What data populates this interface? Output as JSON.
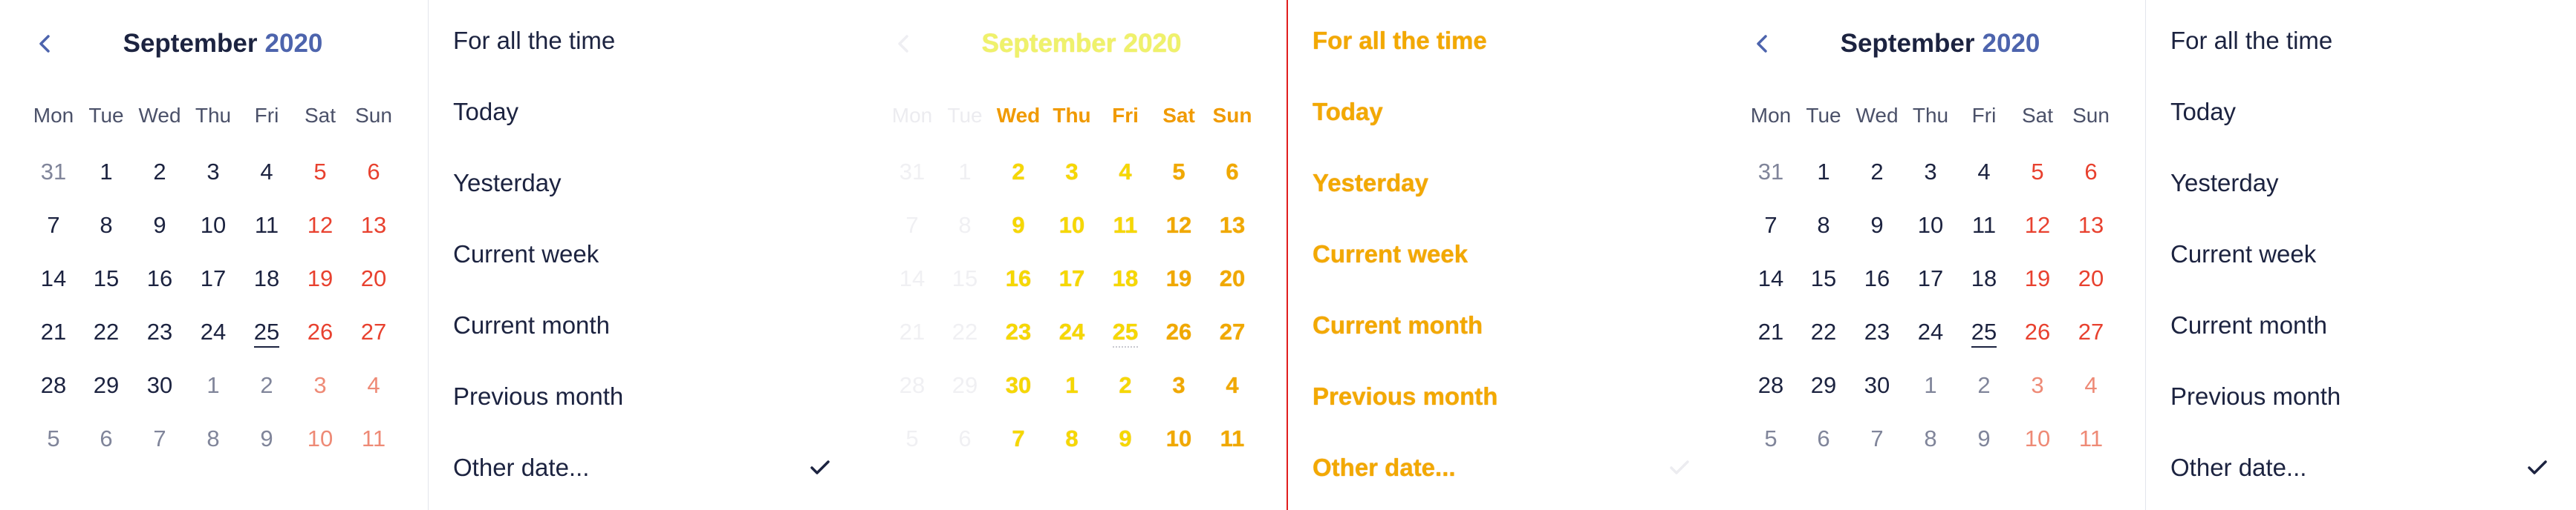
{
  "calendar": {
    "month": "September",
    "year": "2020",
    "weekdays": [
      "Mon",
      "Tue",
      "Wed",
      "Thu",
      "Fri",
      "Sat",
      "Sun"
    ],
    "weeks": [
      [
        "31",
        "1",
        "2",
        "3",
        "4",
        "5",
        "6"
      ],
      [
        "7",
        "8",
        "9",
        "10",
        "11",
        "12",
        "13"
      ],
      [
        "14",
        "15",
        "16",
        "17",
        "18",
        "19",
        "20"
      ],
      [
        "21",
        "22",
        "23",
        "24",
        "25",
        "26",
        "27"
      ],
      [
        "28",
        "29",
        "30",
        "1",
        "2",
        "3",
        "4"
      ],
      [
        "5",
        "6",
        "7",
        "8",
        "9",
        "10",
        "11"
      ]
    ],
    "today": "25"
  },
  "presets": [
    "For all the time",
    "Today",
    "Yesterday",
    "Current week",
    "Current month",
    "Previous month",
    "Other date..."
  ],
  "selected_preset": "Other date...",
  "icons": {
    "prev": "chevron-left-icon",
    "check": "checkmark-icon"
  },
  "colors": {
    "text": "#1c2340",
    "year_accent": "#4d64ad",
    "weekend": "#e8412f",
    "weekend_muted": "#ee8a76",
    "muted": "#80859a",
    "faded_highlight": "#f5d800",
    "divider_red": "#e11d1d"
  }
}
